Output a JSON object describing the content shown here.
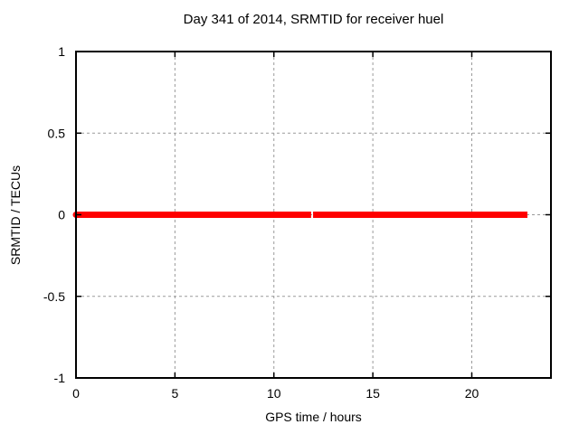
{
  "chart_data": {
    "type": "line",
    "title": "Day 341 of 2014, SRMTID for receiver huel",
    "xlabel": "GPS time / hours",
    "ylabel": "SRMTID / TECUs",
    "xlim": [
      0,
      24
    ],
    "ylim": [
      -1,
      1
    ],
    "xticks": [
      0,
      5,
      10,
      15,
      20
    ],
    "xtick_labels": [
      "0",
      "5",
      "10",
      "15",
      "20"
    ],
    "yticks": [
      -1,
      -0.5,
      0,
      0.5,
      1
    ],
    "ytick_labels": [
      "-1",
      "-0.5",
      "0",
      "0.5",
      "1"
    ],
    "grid": true,
    "grid_color": "#9a9a9a",
    "grid_dash": "3,3",
    "border_color": "#000000",
    "tick_color": "#000000",
    "text_color": "#000000",
    "background_color": "#ffffff",
    "legend": "none",
    "series": [
      {
        "name": "SRMTID",
        "color": "#ff0000",
        "line_width": 7,
        "y_constant": 0,
        "segments": [
          {
            "x_start": 0,
            "x_end": 11.88,
            "y": 0
          },
          {
            "x_start": 11.98,
            "x_end": 22.81,
            "y": 0
          }
        ]
      }
    ]
  }
}
